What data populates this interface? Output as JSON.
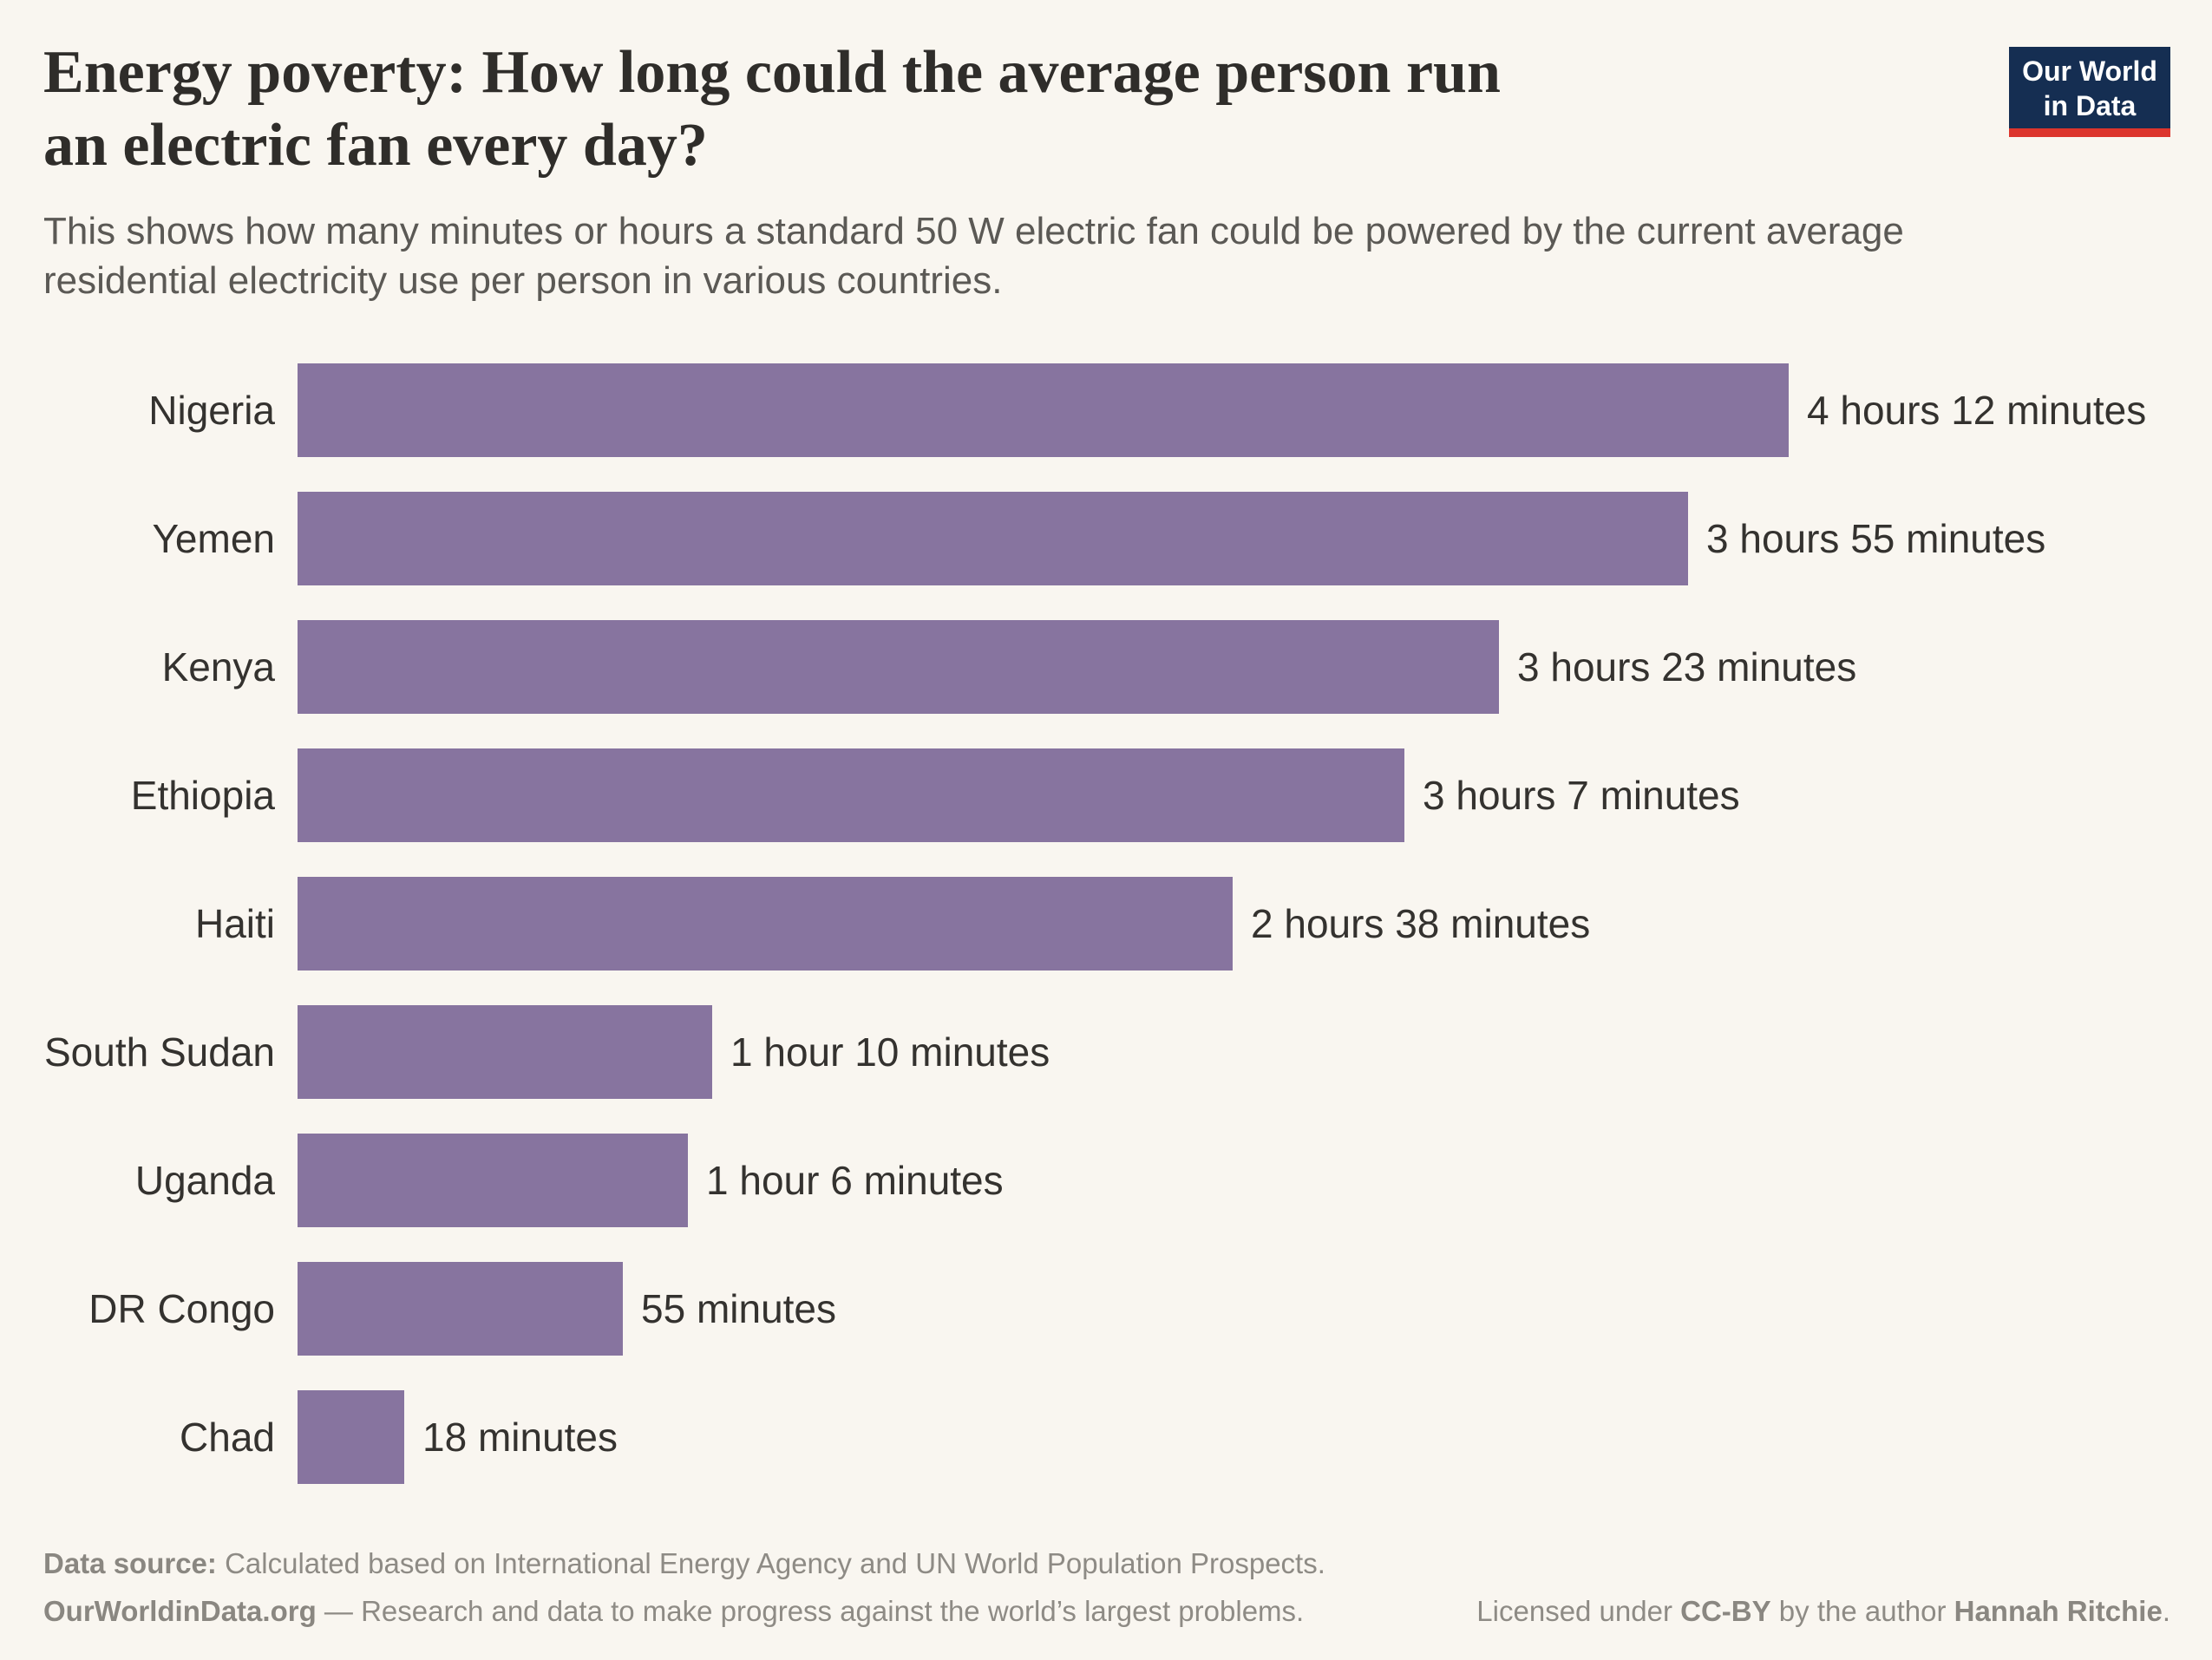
{
  "header": {
    "title_line1": "Energy poverty: How long could the average person run",
    "title_line2": "an electric fan every day?",
    "subtitle_line1": "This shows how many minutes or hours a standard 50 W electric fan could be powered by the current average",
    "subtitle_line2": "residential electricity use per person in various countries."
  },
  "logo": {
    "line1": "Our World",
    "line2": "in Data",
    "background_color": "#152e52",
    "underline_color": "#dc352d"
  },
  "chart_data": {
    "type": "bar",
    "orientation": "horizontal",
    "categories": [
      "Nigeria",
      "Yemen",
      "Kenya",
      "Ethiopia",
      "Haiti",
      "South Sudan",
      "Uganda",
      "DR Congo",
      "Chad"
    ],
    "values_minutes": [
      252,
      235,
      203,
      187,
      158,
      70,
      66,
      55,
      18
    ],
    "value_labels": [
      "4 hours 12 minutes",
      "3 hours 55 minutes",
      "3 hours 23 minutes",
      "3 hours 7 minutes",
      "2 hours 38 minutes",
      "1 hour 10 minutes",
      "1 hour 6 minutes",
      "55 minutes",
      "18 minutes"
    ],
    "xlim_minutes": [
      0,
      252
    ],
    "bar_color": "#87749f",
    "grid": false,
    "legend": false
  },
  "footer": {
    "datasource_label": "Data source:",
    "datasource_text": " Calculated based on International Energy Agency and UN World Population Prospects.",
    "site": "OurWorldinData.org",
    "site_text": " — Research and data to make progress against the world’s largest problems.",
    "license_pre": "Licensed under ",
    "license_cc": "CC-BY",
    "license_mid": " by the author ",
    "license_author": "Hannah Ritchie",
    "license_post": "."
  }
}
